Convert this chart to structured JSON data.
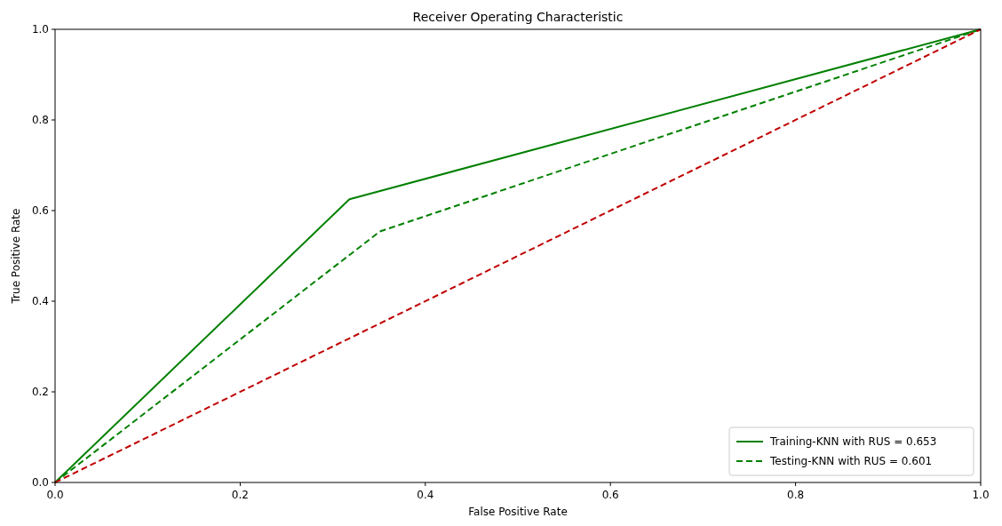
{
  "chart_data": {
    "type": "line",
    "title": "Receiver Operating Characteristic",
    "xlabel": "False Positive Rate",
    "ylabel": "True Positive Rate",
    "xlim": [
      0,
      1
    ],
    "ylim": [
      0,
      1
    ],
    "xticks": [
      {
        "value": 0,
        "label": "0.0"
      },
      0.2,
      0.4,
      0.6,
      0.8,
      {
        "value": 1,
        "label": "1.0"
      }
    ],
    "yticks": [
      {
        "value": 0,
        "label": "0.0"
      },
      0.2,
      0.4,
      0.6,
      0.8,
      {
        "value": 1,
        "label": "1.0"
      }
    ],
    "legend": "bottom right",
    "grid": false,
    "marker": "none",
    "series": [
      {
        "name": "Training-KNN with RUS = 0.653",
        "color": "#008000",
        "x": [
          0,
          0.318,
          1
        ],
        "values": [
          0,
          0.625,
          1
        ],
        "line_style": "solid"
      },
      {
        "name": "Testing-KNN with RUS = 0.601",
        "color": "#008000",
        "x": [
          0,
          0.351,
          1
        ],
        "values": [
          0,
          0.554,
          1
        ],
        "line_style": "dashed"
      },
      {
        "color": "#c00000",
        "x": [
          0,
          1
        ],
        "values": [
          0,
          1
        ],
        "line_style": "dashed"
      }
    ]
  }
}
